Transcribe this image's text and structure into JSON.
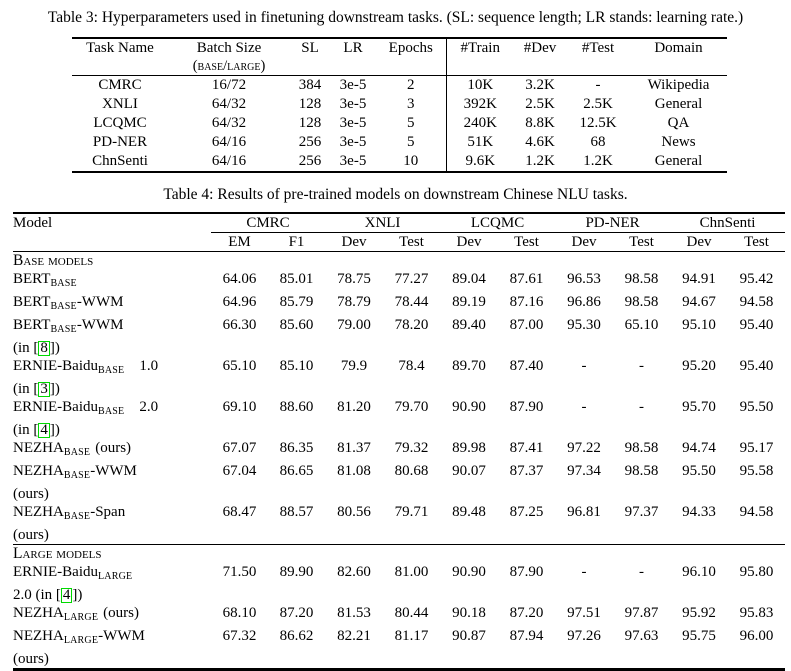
{
  "table3": {
    "caption": "Table 3: Hyperparameters used in finetuning downstream tasks. (SL: sequence length; LR stands: learning rate.)",
    "headers": [
      "Task Name",
      "Batch Size",
      "SL",
      "LR",
      "Epochs",
      "#Train",
      "#Dev",
      "#Test",
      "Domain"
    ],
    "batch_size_subheader": "(base/large)",
    "rows": [
      [
        "CMRC",
        "16/72",
        "384",
        "3e-5",
        "2",
        "10K",
        "3.2K",
        "-",
        "Wikipedia"
      ],
      [
        "XNLI",
        "64/32",
        "128",
        "3e-5",
        "3",
        "392K",
        "2.5K",
        "2.5K",
        "General"
      ],
      [
        "LCQMC",
        "64/32",
        "128",
        "3e-5",
        "5",
        "240K",
        "8.8K",
        "12.5K",
        "QA"
      ],
      [
        "PD-NER",
        "64/16",
        "256",
        "3e-5",
        "5",
        "51K",
        "4.6K",
        "68",
        "News"
      ],
      [
        "ChnSenti",
        "64/16",
        "256",
        "3e-5",
        "10",
        "9.6K",
        "1.2K",
        "1.2K",
        "General"
      ]
    ]
  },
  "table4": {
    "caption": "Table 4: Results of pre-trained models on downstream Chinese NLU tasks.",
    "model_header": "Model",
    "groups": [
      {
        "label": "CMRC",
        "cols": [
          "EM",
          "F1"
        ]
      },
      {
        "label": "XNLI",
        "cols": [
          "Dev",
          "Test"
        ]
      },
      {
        "label": "LCQMC",
        "cols": [
          "Dev",
          "Test"
        ]
      },
      {
        "label": "PD-NER",
        "cols": [
          "Dev",
          "Test"
        ]
      },
      {
        "label": "ChnSenti",
        "cols": [
          "Dev",
          "Test"
        ]
      }
    ],
    "citation_box_color": "#00d900",
    "sections": [
      {
        "title": "Base models",
        "rows": [
          {
            "main": "BERT",
            "sub": "BASE",
            "suffix": "",
            "tag": "",
            "line2": null,
            "values": [
              "64.06",
              "85.01",
              "78.75",
              "77.27",
              "89.04",
              "87.61",
              "96.53",
              "98.58",
              "94.91",
              "95.42"
            ],
            "bold": [
              false,
              false,
              false,
              false,
              false,
              false,
              false,
              false,
              false,
              false
            ]
          },
          {
            "main": "BERT",
            "sub": "BASE",
            "suffix": "-WWM",
            "tag": "",
            "line2": null,
            "values": [
              "64.96",
              "85.79",
              "78.79",
              "78.44",
              "89.19",
              "87.16",
              "96.86",
              "98.58",
              "94.67",
              "94.58"
            ],
            "bold": [
              false,
              false,
              false,
              false,
              false,
              false,
              false,
              false,
              false,
              false
            ]
          },
          {
            "main": "BERT",
            "sub": "BASE",
            "suffix": "-WWM",
            "tag": "",
            "line2": {
              "pre": "(in [",
              "cite": "8",
              "post": "])"
            },
            "values": [
              "66.30",
              "85.60",
              "79.00",
              "78.20",
              "89.40",
              "87.00",
              "95.30",
              "65.10",
              "95.10",
              "95.40"
            ],
            "bold": [
              false,
              false,
              false,
              false,
              false,
              false,
              false,
              false,
              false,
              false
            ]
          },
          {
            "main": "ERNIE-Baidu",
            "sub": "BASE",
            "suffix": "",
            "tag": "1.0",
            "line2": {
              "pre": "(in [",
              "cite": "3",
              "post": "])"
            },
            "values": [
              "65.10",
              "85.10",
              "79.9",
              "78.4",
              "89.70",
              "87.40",
              "-",
              "-",
              "95.20",
              "95.40"
            ],
            "bold": [
              false,
              false,
              false,
              false,
              false,
              false,
              false,
              false,
              false,
              false
            ]
          },
          {
            "main": "ERNIE-Baidu",
            "sub": "BASE",
            "suffix": "",
            "tag": "2.0",
            "line2": {
              "pre": "(in [",
              "cite": "4",
              "post": "])"
            },
            "values": [
              "69.10",
              "88.60",
              "81.20",
              "79.70",
              "90.90",
              "87.90",
              "-",
              "-",
              "95.70",
              "95.50"
            ],
            "bold": [
              true,
              true,
              false,
              false,
              true,
              true,
              false,
              false,
              true,
              false
            ]
          },
          {
            "main": "NEZHA",
            "sub": "BASE",
            "suffix": "",
            "tag": "(ours)",
            "line2": null,
            "values": [
              "67.07",
              "86.35",
              "81.37",
              "79.32",
              "89.98",
              "87.41",
              "97.22",
              "98.58",
              "94.74",
              "95.17"
            ],
            "bold": [
              false,
              false,
              true,
              false,
              false,
              false,
              false,
              false,
              false,
              false
            ]
          },
          {
            "main": "NEZHA",
            "sub": "BASE",
            "suffix": "-WWM",
            "tag": "",
            "line2": {
              "pre": "(ours)",
              "cite": null,
              "post": ""
            },
            "values": [
              "67.04",
              "86.65",
              "81.08",
              "80.68",
              "90.07",
              "87.37",
              "97.34",
              "98.58",
              "95.50",
              "95.58"
            ],
            "bold": [
              false,
              false,
              false,
              true,
              false,
              false,
              true,
              true,
              false,
              true
            ]
          },
          {
            "main": "NEZHA",
            "sub": "BASE",
            "suffix": "-Span",
            "tag": "",
            "line2": {
              "pre": "(ours)",
              "cite": null,
              "post": ""
            },
            "values": [
              "68.47",
              "88.57",
              "80.56",
              "79.71",
              "89.48",
              "87.25",
              "96.81",
              "97.37",
              "94.33",
              "94.58"
            ],
            "bold": [
              false,
              false,
              false,
              false,
              false,
              false,
              false,
              false,
              false,
              false
            ]
          }
        ]
      },
      {
        "title": "Large models",
        "rows": [
          {
            "main": "ERNIE-Baidu",
            "sub": "LARGE",
            "suffix": "",
            "tag": "",
            "line2": {
              "pre": "2.0 (in [",
              "cite": "4",
              "post": "])"
            },
            "values": [
              "71.50",
              "89.90",
              "82.60",
              "81.00",
              "90.90",
              "87.90",
              "-",
              "-",
              "96.10",
              "95.80"
            ],
            "bold": [
              true,
              true,
              true,
              false,
              true,
              false,
              false,
              false,
              true,
              false
            ]
          },
          {
            "main": "NEZHA",
            "sub": "LARGE",
            "suffix": "",
            "tag": "(ours)",
            "line2": null,
            "values": [
              "68.10",
              "87.20",
              "81.53",
              "80.44",
              "90.18",
              "87.20",
              "97.51",
              "97.87",
              "95.92",
              "95.83"
            ],
            "bold": [
              false,
              false,
              false,
              false,
              false,
              false,
              true,
              true,
              false,
              false
            ]
          },
          {
            "main": "NEZHA",
            "sub": "LARGE",
            "suffix": "-WWM",
            "tag": "",
            "line2": {
              "pre": "(ours)",
              "cite": null,
              "post": ""
            },
            "values": [
              "67.32",
              "86.62",
              "82.21",
              "81.17",
              "90.87",
              "87.94",
              "97.26",
              "97.63",
              "95.75",
              "96.00"
            ],
            "bold": [
              false,
              false,
              false,
              true,
              false,
              true,
              false,
              false,
              false,
              true
            ]
          }
        ]
      }
    ]
  }
}
